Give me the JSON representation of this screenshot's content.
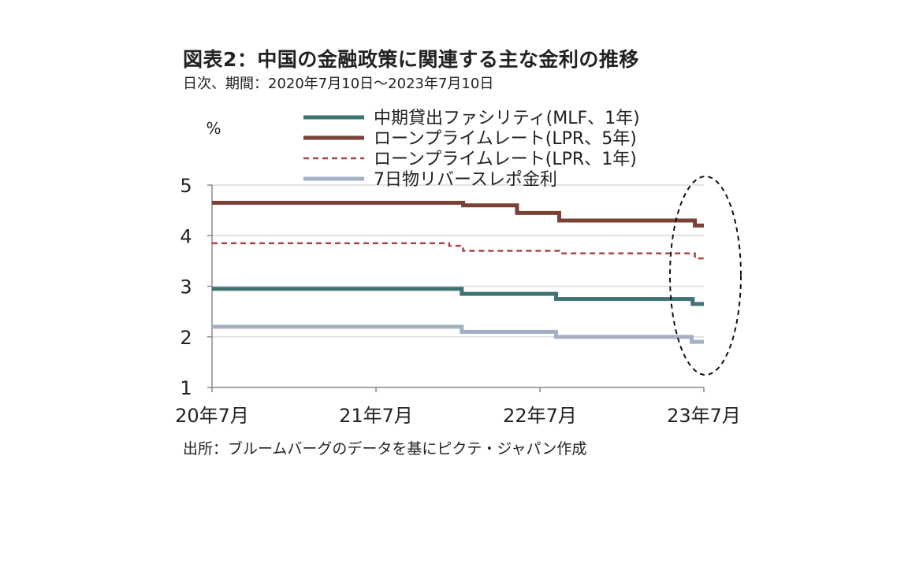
{
  "header": {
    "title": "図表2：中国の金融政策に関連する主な金利の推移",
    "subtitle": "日次、期間：2020年7月10日～2023年7月10日"
  },
  "footer": {
    "source": "出所：ブルームバーグのデータを基にピクテ・ジャパン作成"
  },
  "chart_data": {
    "type": "line",
    "ylabel": "%",
    "ylim": [
      1,
      5
    ],
    "yticks": [
      "1",
      "2",
      "3",
      "4",
      "5"
    ],
    "xlim": [
      "2020-07-10",
      "2023-07-10"
    ],
    "xticks": [
      {
        "date": "2020-07-10",
        "label": "20年7月"
      },
      {
        "date": "2021-07-10",
        "label": "21年7月"
      },
      {
        "date": "2022-07-10",
        "label": "22年7月"
      },
      {
        "date": "2023-07-10",
        "label": "23年7月"
      }
    ],
    "grid": "horizontal",
    "legend_position": "top",
    "annotation": "dashed ellipse highlighting June 2023 rate cuts",
    "series": [
      {
        "name": "中期貸出ファシリティ(MLF、1年)",
        "style": "solid",
        "color": "#3f7272",
        "points": [
          {
            "x": "2020-07-10",
            "y": 2.95
          },
          {
            "x": "2022-01-17",
            "y": 2.85
          },
          {
            "x": "2022-08-15",
            "y": 2.75
          },
          {
            "x": "2023-06-15",
            "y": 2.65
          },
          {
            "x": "2023-07-10",
            "y": 2.65
          }
        ]
      },
      {
        "name": "ローンプライムレート(LPR、5年)",
        "style": "solid",
        "color": "#7a4236",
        "points": [
          {
            "x": "2020-07-10",
            "y": 4.65
          },
          {
            "x": "2022-01-20",
            "y": 4.6
          },
          {
            "x": "2022-05-20",
            "y": 4.45
          },
          {
            "x": "2022-08-22",
            "y": 4.3
          },
          {
            "x": "2023-06-20",
            "y": 4.2
          },
          {
            "x": "2023-07-10",
            "y": 4.2
          }
        ]
      },
      {
        "name": "ローンプライムレート(LPR、1年)",
        "style": "dashed",
        "color": "#a84646",
        "points": [
          {
            "x": "2020-07-10",
            "y": 3.85
          },
          {
            "x": "2021-12-20",
            "y": 3.8
          },
          {
            "x": "2022-01-20",
            "y": 3.7
          },
          {
            "x": "2022-08-22",
            "y": 3.65
          },
          {
            "x": "2023-06-20",
            "y": 3.55
          },
          {
            "x": "2023-07-10",
            "y": 3.55
          }
        ]
      },
      {
        "name": "7日物リバースレポ金利",
        "style": "solid",
        "color": "#a3afc4",
        "points": [
          {
            "x": "2020-07-10",
            "y": 2.2
          },
          {
            "x": "2022-01-17",
            "y": 2.1
          },
          {
            "x": "2022-08-15",
            "y": 2.0
          },
          {
            "x": "2023-06-13",
            "y": 1.9
          },
          {
            "x": "2023-07-10",
            "y": 1.9
          }
        ]
      }
    ]
  }
}
